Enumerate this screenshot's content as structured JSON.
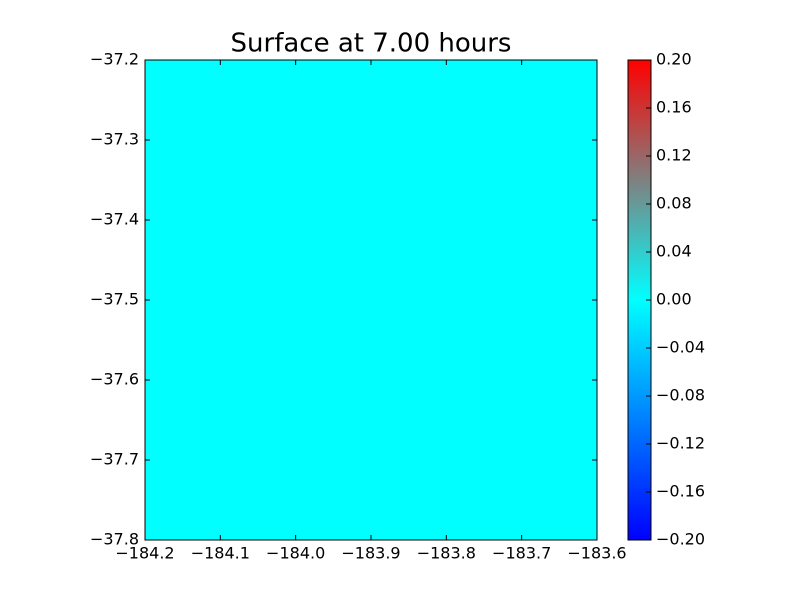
{
  "chart_data": {
    "type": "heatmap",
    "title": "Surface at 7.00 hours",
    "values": [
      [
        0
      ]
    ],
    "xlim": [
      -184.2,
      -183.6
    ],
    "xticks": [
      {
        "value": -184.2,
        "label": "−184.2"
      },
      {
        "value": -184.1,
        "label": "−184.1"
      },
      {
        "value": -184.0,
        "label": "−184.0"
      },
      {
        "value": -183.9,
        "label": "−183.9"
      },
      {
        "value": -183.8,
        "label": "−183.8"
      },
      {
        "value": -183.7,
        "label": "−183.7"
      },
      {
        "value": -183.6,
        "label": "−183.6"
      }
    ],
    "ylim": [
      -37.8,
      -37.2
    ],
    "yticks": [
      {
        "value": -37.2,
        "label": "−37.2"
      },
      {
        "value": -37.3,
        "label": "−37.3"
      },
      {
        "value": -37.4,
        "label": "−37.4"
      },
      {
        "value": -37.5,
        "label": "−37.5"
      },
      {
        "value": -37.6,
        "label": "−37.6"
      },
      {
        "value": -37.7,
        "label": "−37.7"
      },
      {
        "value": -37.8,
        "label": "−37.8"
      }
    ],
    "clim": [
      -0.2,
      0.2
    ],
    "cticks": [
      {
        "value": 0.2,
        "label": "0.20"
      },
      {
        "value": 0.16,
        "label": "0.16"
      },
      {
        "value": 0.12,
        "label": "0.12"
      },
      {
        "value": 0.08,
        "label": "0.08"
      },
      {
        "value": 0.04,
        "label": "0.04"
      },
      {
        "value": 0,
        "label": "0.00"
      },
      {
        "value": -0.04,
        "label": "−0.04"
      },
      {
        "value": -0.08,
        "label": "−0.08"
      },
      {
        "value": -0.12,
        "label": "−0.12"
      },
      {
        "value": -0.16,
        "label": "−0.16"
      },
      {
        "value": -0.2,
        "label": "−0.20"
      }
    ],
    "colormap": [
      {
        "value": -0.2,
        "color": "#0000ff"
      },
      {
        "value": 0,
        "color": "#00ffff"
      },
      {
        "value": 0.1,
        "color": "#808080"
      },
      {
        "value": 0.2,
        "color": "#ff0000"
      }
    ]
  }
}
